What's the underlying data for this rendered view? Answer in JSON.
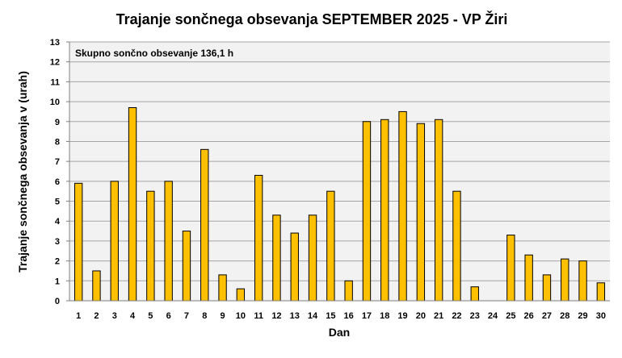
{
  "chart_data": {
    "type": "bar",
    "title": "Trajanje  sončnega  obsevanja  SEPTEMBER  2025 - VP Žiri",
    "annotation": "Skupno sončno obsevanje 136,1 h",
    "xlabel": "Dan",
    "ylabel": "Trajanje  sončnega  obsevanja  v (urah)",
    "categories": [
      "1",
      "2",
      "3",
      "4",
      "5",
      "6",
      "7",
      "8",
      "9",
      "10",
      "11",
      "12",
      "13",
      "14",
      "15",
      "16",
      "17",
      "18",
      "19",
      "20",
      "21",
      "22",
      "23",
      "24",
      "25",
      "26",
      "27",
      "28",
      "29",
      "30"
    ],
    "values": [
      5.9,
      1.5,
      6.0,
      9.7,
      5.5,
      6.0,
      3.5,
      7.6,
      1.3,
      0.6,
      6.3,
      4.3,
      3.4,
      4.3,
      5.5,
      1.0,
      9.0,
      9.1,
      9.5,
      8.9,
      9.1,
      5.5,
      0.7,
      0.0,
      3.3,
      2.3,
      1.3,
      2.1,
      2.0,
      0.9
    ],
    "ylim": [
      0,
      13
    ],
    "yticks": [
      0,
      1,
      2,
      3,
      4,
      5,
      6,
      7,
      8,
      9,
      10,
      11,
      12,
      13
    ],
    "grid": true,
    "colors": {
      "bar_fill": "#FFC000",
      "bar_stroke": "#000000",
      "plot_background": "#F2F2F2",
      "grid": "#A6A6A6"
    }
  }
}
